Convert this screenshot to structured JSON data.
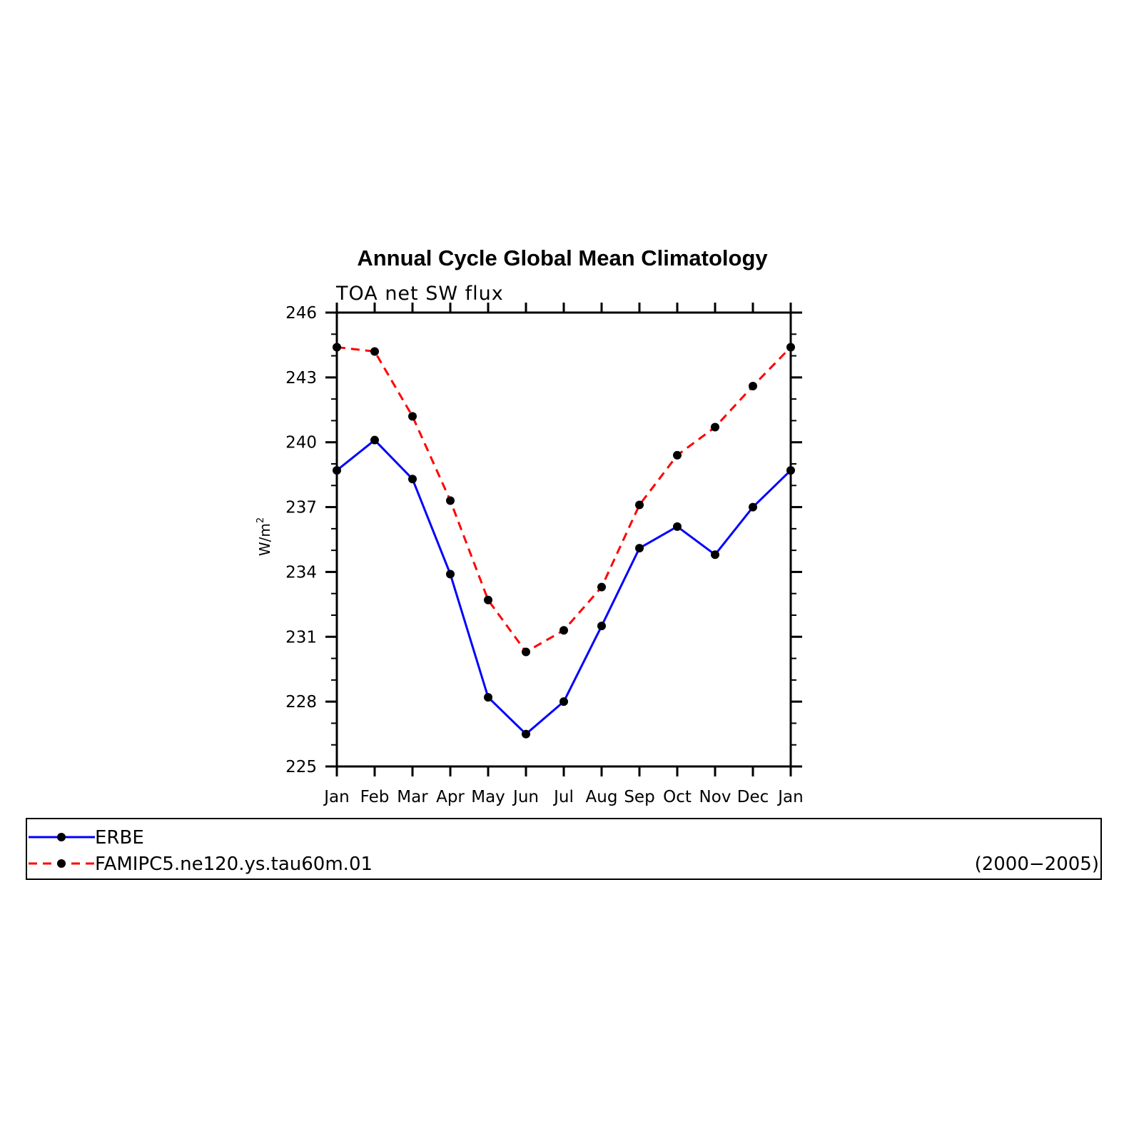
{
  "chart_data": {
    "type": "line",
    "title": "Annual Cycle Global Mean Climatology",
    "subtitle": "TOA net SW flux",
    "ylabel": "W/m",
    "ylabel_superscript": "2",
    "xlabel": "",
    "categories": [
      "Jan",
      "Feb",
      "Mar",
      "Apr",
      "May",
      "Jun",
      "Jul",
      "Aug",
      "Sep",
      "Oct",
      "Nov",
      "Dec",
      "Jan"
    ],
    "ylim": [
      225,
      246
    ],
    "yticks": [
      225,
      228,
      231,
      234,
      237,
      240,
      243,
      246
    ],
    "series": [
      {
        "name": "ERBE",
        "color": "#0000ff",
        "dash": "solid",
        "values": [
          238.7,
          240.1,
          238.3,
          233.9,
          228.2,
          226.5,
          228.0,
          231.5,
          235.1,
          236.1,
          234.8,
          237.0,
          238.7
        ]
      },
      {
        "name": "FAMIPC5.ne120.ys.tau60m.01",
        "color": "#ff0000",
        "dash": "dashed",
        "values": [
          244.4,
          244.2,
          241.2,
          237.3,
          232.7,
          230.3,
          231.3,
          233.3,
          237.1,
          239.4,
          240.7,
          242.6,
          244.4
        ]
      }
    ],
    "legend_placement": "bottom",
    "legend_note": "(2000−2005)",
    "grid": false
  }
}
